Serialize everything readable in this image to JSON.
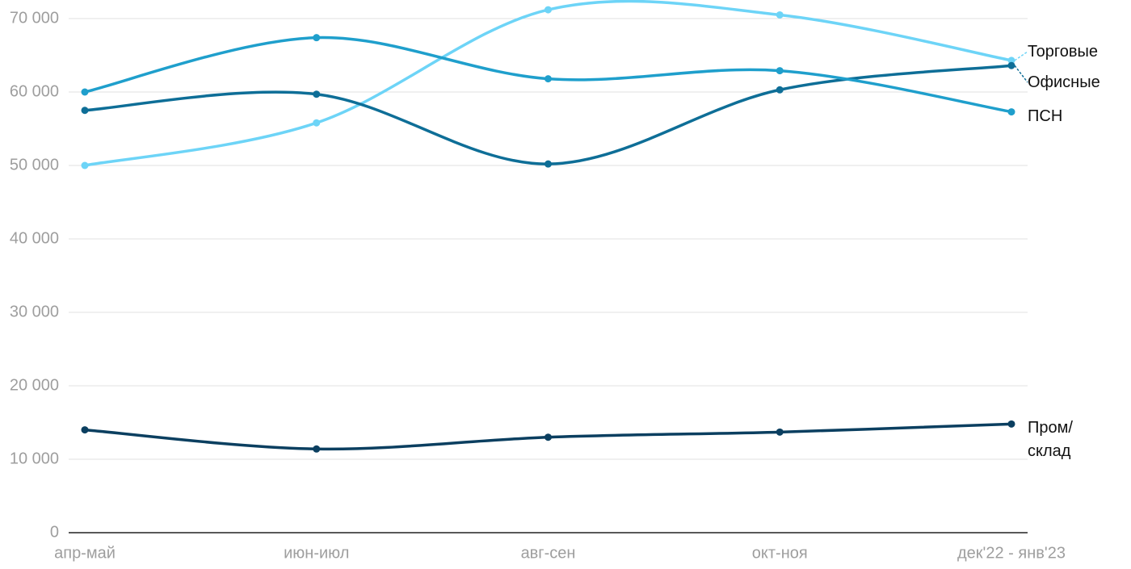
{
  "chart_data": {
    "type": "line",
    "categories": [
      "апр-май",
      "июн-июл",
      "авг-сен",
      "окт-ноя",
      "дек'22 - янв'23"
    ],
    "series": [
      {
        "name": "Торговые",
        "color": "#6dd4f7",
        "values": [
          50000,
          55800,
          71200,
          70500,
          64300
        ]
      },
      {
        "name": "Офисные",
        "color": "#0e6e97",
        "values": [
          57500,
          59700,
          50200,
          60300,
          63600
        ]
      },
      {
        "name": "ПСН",
        "color": "#1f9fcc",
        "values": [
          60000,
          67400,
          61800,
          62900,
          57300
        ]
      },
      {
        "name": "Пром/склад",
        "color": "#0b3f60",
        "values": [
          14000,
          11400,
          13000,
          13700,
          14800
        ]
      }
    ],
    "ylim": [
      0,
      70000
    ],
    "yticks": [
      0,
      {
        "value": 10000,
        "label": "10 000"
      },
      {
        "value": 20000,
        "label": "20 000"
      },
      {
        "value": 30000,
        "label": "30 000"
      },
      {
        "value": 40000,
        "label": "40 000"
      },
      {
        "value": 50000,
        "label": "50 000"
      },
      {
        "value": 60000,
        "label": "60 000"
      },
      {
        "value": 70000,
        "label": "70 000"
      }
    ],
    "grid": true,
    "smooth": true
  }
}
